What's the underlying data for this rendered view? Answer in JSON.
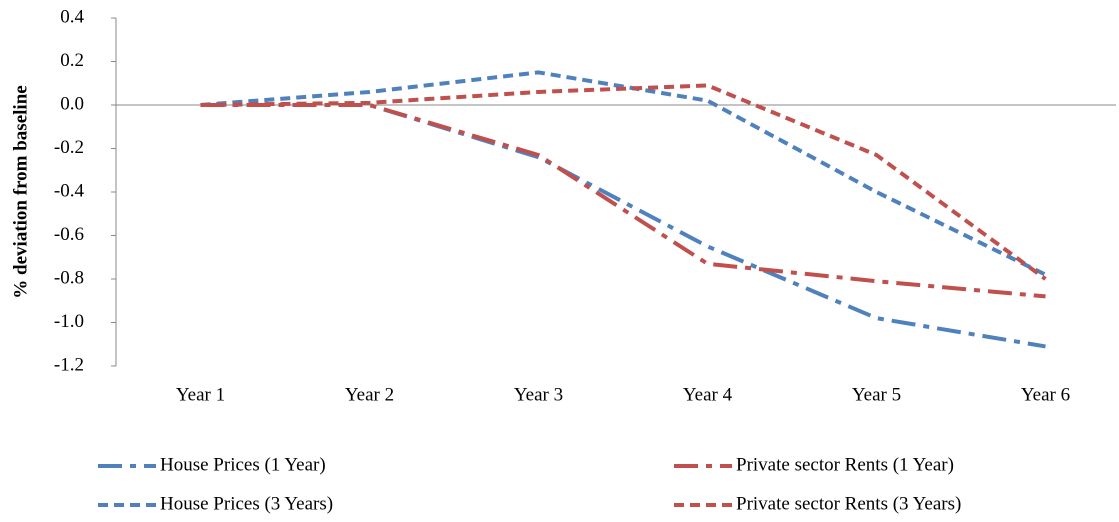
{
  "chart_data": {
    "type": "line",
    "y_label": "% deviation from baseline",
    "categories": [
      "Year 1",
      "Year 2",
      "Year 3",
      "Year 4",
      "Year 5",
      "Year 6"
    ],
    "series": [
      {
        "name": "House Prices (1 Year)",
        "color": "#4f81bd",
        "dash": "long",
        "values": [
          0,
          0.0,
          -0.24,
          -0.65,
          -0.98,
          -1.11
        ]
      },
      {
        "name": "Private sector Rents (1 Year)",
        "color": "#c0504d",
        "dash": "long",
        "values": [
          0,
          0.0,
          -0.23,
          -0.73,
          -0.81,
          -0.88
        ]
      },
      {
        "name": "House Prices (3 Years)",
        "color": "#4f81bd",
        "dash": "short",
        "values": [
          0,
          0.06,
          0.15,
          0.02,
          -0.4,
          -0.78
        ]
      },
      {
        "name": "Private sector Rents (3 Years)",
        "color": "#c0504d",
        "dash": "short",
        "values": [
          0,
          0.01,
          0.06,
          0.09,
          -0.23,
          -0.8
        ]
      }
    ],
    "ylim": [
      -1.2,
      0.4
    ],
    "yticks": [
      -1.2,
      {
        "value": -1.0,
        "label": "-1.0"
      },
      -0.8,
      -0.6,
      -0.4,
      -0.2,
      {
        "value": 0,
        "label": "0.0"
      },
      0.2,
      0.4
    ],
    "grid": false
  }
}
